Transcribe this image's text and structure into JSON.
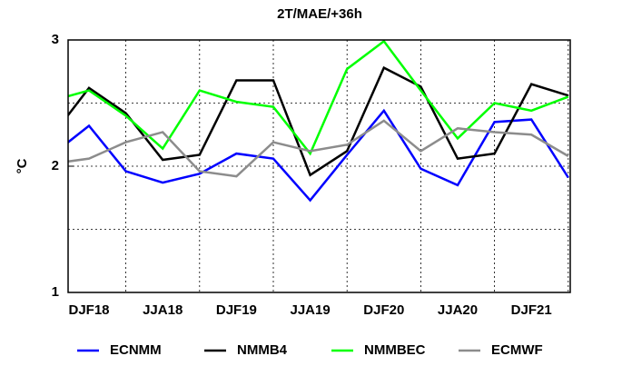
{
  "chart_data": {
    "type": "line",
    "title": "2T/MAE/+36h",
    "y_label": "°C",
    "categories": [
      null,
      "DJF18",
      null,
      "JJA18",
      null,
      "DJF19",
      null,
      "JJA19",
      null,
      "DJF20",
      null,
      "JJA20",
      null,
      "DJF21",
      null
    ],
    "series": [
      {
        "name": "ECNMM",
        "color": "#0000ff",
        "values": [
          2.09,
          2.32,
          1.96,
          1.87,
          1.94,
          2.1,
          2.06,
          1.73,
          2.09,
          2.44,
          1.98,
          1.85,
          2.35,
          2.37,
          1.91
        ]
      },
      {
        "name": "NMMB4",
        "color": "#000000",
        "values": [
          2.24,
          2.62,
          2.42,
          2.05,
          2.09,
          2.68,
          2.68,
          1.93,
          2.12,
          2.78,
          2.63,
          2.06,
          2.1,
          2.65,
          2.56
        ]
      },
      {
        "name": "NMMBEC",
        "color": "#00ff00",
        "values": [
          2.52,
          2.6,
          2.4,
          2.14,
          2.6,
          2.51,
          2.47,
          2.1,
          2.77,
          2.99,
          2.6,
          2.22,
          2.5,
          2.44,
          2.55
        ]
      },
      {
        "name": "ECMWF",
        "color": "#8c8c8c",
        "values": [
          2.02,
          2.06,
          2.19,
          2.27,
          1.96,
          1.92,
          2.19,
          2.12,
          2.17,
          2.36,
          2.12,
          2.3,
          2.27,
          2.25,
          2.08
        ]
      }
    ],
    "ylim": [
      1,
      3
    ],
    "yticks": [
      1,
      2,
      3
    ],
    "minor_yticks": [
      1.5,
      2.5
    ],
    "grid": true
  }
}
